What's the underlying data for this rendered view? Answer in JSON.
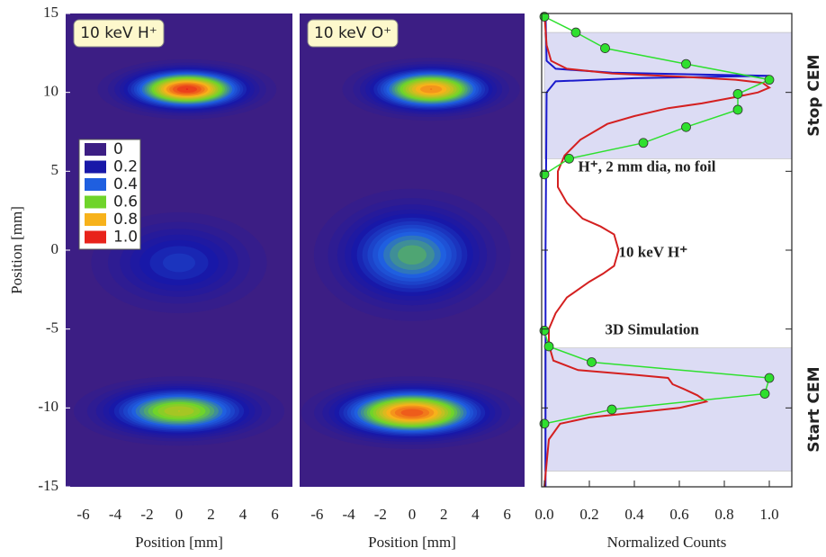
{
  "chart_data": [
    {
      "type": "heatmap",
      "label": "10 keV H⁺",
      "ylabel": "Position [mm]",
      "xlabel": "Position [mm]",
      "xlim": [
        -7.1,
        7.1
      ],
      "xticks": [
        -6,
        -4,
        -2,
        0,
        2,
        4,
        6
      ],
      "ylim": [
        -15,
        15
      ],
      "yticks": [
        15,
        10,
        5,
        0,
        -5,
        -10,
        -15
      ],
      "background": "#3c1e84",
      "blobs": [
        {
          "x": 0.5,
          "y": 10.2,
          "rx": 5.6,
          "ry": 1.9,
          "peak": 1.0
        },
        {
          "x": 0,
          "y": -0.8,
          "rx": 5.5,
          "ry": 3.2,
          "peak": 0.3
        },
        {
          "x": 0,
          "y": -10.2,
          "rx": 6.6,
          "ry": 2.2,
          "peak": 0.72
        }
      ],
      "colorbar": {
        "levels": [
          0,
          0.2,
          0.4,
          0.6,
          0.8,
          {
            "value": 1.0,
            "label": "1.0"
          }
        ],
        "colors": [
          "#3c1e84",
          "#1818a8",
          "#1f5fe0",
          "#6fd42a",
          "#f7b21b",
          "#e8231b"
        ]
      }
    },
    {
      "type": "heatmap",
      "label": "10 keV O⁺",
      "xlabel": "Position [mm]",
      "xlim": [
        -7.1,
        7.1
      ],
      "xticks": [
        -6,
        -4,
        -2,
        0,
        2,
        4,
        6
      ],
      "ylim": [
        -15,
        15
      ],
      "yticks": [
        15,
        10,
        5,
        0,
        -5,
        -10,
        -15
      ],
      "background": "#3c1e84",
      "blobs": [
        {
          "x": 1.2,
          "y": 10.2,
          "rx": 5.6,
          "ry": 2.0,
          "peak": 0.88
        },
        {
          "x": 0,
          "y": -0.3,
          "rx": 6.2,
          "ry": 4.2,
          "peak": 0.55
        },
        {
          "x": 0,
          "y": -10.3,
          "rx": 7.0,
          "ry": 2.3,
          "peak": 0.95
        }
      ]
    },
    {
      "type": "line",
      "xlabel": "Normalized Counts",
      "xlim": [
        -0.012,
        1.1
      ],
      "xticks": [
        {
          "value": 0,
          "label": "0.0"
        },
        0.2,
        0.4,
        0.6,
        0.8,
        {
          "value": 1,
          "label": "1.0"
        }
      ],
      "ylim": [
        -15,
        15
      ],
      "yticks": [
        15,
        10,
        5,
        0,
        -5,
        -10,
        -15
      ],
      "shaded_regions": [
        [
          5.8,
          13.8
        ],
        [
          -14,
          -6.2
        ]
      ],
      "shade_color": "#dcdcf4",
      "region_labels": [
        "Stop CEM",
        "Start CEM"
      ],
      "region_label_color": "#f0561e",
      "series": [
        {
          "name": "H⁺, 2 mm dia, no foil",
          "color": "#1a1acc",
          "y": [
            15,
            12,
            11.5,
            11.25,
            11.05,
            10.9,
            10.7,
            10,
            0,
            -15
          ],
          "values": [
            0.005,
            0.01,
            0.05,
            0.3,
            1.0,
            0.4,
            0.05,
            0.01,
            0.005,
            0.005
          ]
        },
        {
          "name": "10 keV H⁺",
          "color": "#d42020",
          "y": [
            15,
            13,
            12,
            11.5,
            11.2,
            11,
            10.8,
            10.6,
            10.3,
            10,
            9.7,
            9.3,
            9,
            8.5,
            8,
            7,
            6,
            5,
            4,
            3,
            2,
            1.5,
            1,
            0,
            -1,
            -1.5,
            -2,
            -3,
            -4,
            -5,
            -6,
            -7,
            -7.6,
            -7.9,
            -8.1,
            -8.5,
            -8.8,
            -9.2,
            -9.6,
            -10,
            -10.3,
            -10.6,
            -11,
            -12,
            -15
          ],
          "values": [
            0,
            0.01,
            0.03,
            0.1,
            0.3,
            0.6,
            0.85,
            0.97,
            1.0,
            0.95,
            0.85,
            0.7,
            0.55,
            0.4,
            0.28,
            0.16,
            0.09,
            0.06,
            0.06,
            0.1,
            0.17,
            0.25,
            0.31,
            0.33,
            0.31,
            0.26,
            0.2,
            0.1,
            0.05,
            0.02,
            0.02,
            0.04,
            0.15,
            0.4,
            0.55,
            0.57,
            0.62,
            0.68,
            0.72,
            0.6,
            0.4,
            0.2,
            0.07,
            0.02,
            0
          ]
        },
        {
          "name": "3D Simulation",
          "color": "#2ee02e",
          "markers": true,
          "y": [
            14.8,
            13.8,
            12.8,
            11.8,
            10.8,
            9.9,
            8.9,
            7.8,
            6.8,
            5.8,
            4.8,
            null,
            -5.1,
            -6.1,
            -7.1,
            -8.1,
            -9.1,
            -10.1,
            -11
          ],
          "values": [
            0,
            0.14,
            0.27,
            0.63,
            1.0,
            0.86,
            0.86,
            0.63,
            0.44,
            0.11,
            0,
            null,
            0,
            0.02,
            0.21,
            1.0,
            0.98,
            0.3,
            0
          ]
        }
      ]
    }
  ]
}
